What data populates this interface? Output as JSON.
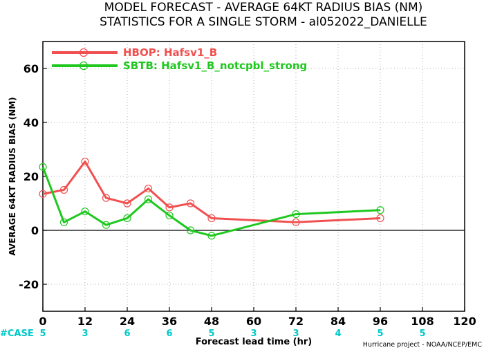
{
  "chart_data": {
    "type": "line",
    "title": [
      "MODEL FORECAST - AVERAGE 64KT RADIUS BIAS (NM)",
      "STATISTICS FOR A SINGLE STORM - al052022_DANIELLE"
    ],
    "xlabel": "Forecast lead time (hr)",
    "ylabel": "AVERAGE 64KT RADIUS BIAS (NM)",
    "xlim": [
      0,
      120
    ],
    "ylim": [
      -30,
      70
    ],
    "xticks": [
      0,
      12,
      24,
      36,
      48,
      60,
      72,
      84,
      96,
      108,
      120
    ],
    "yticks": [
      -20,
      0,
      20,
      40,
      60
    ],
    "grid": true,
    "legend_position": "top-left",
    "zero_line": true,
    "series": [
      {
        "name": "HBOP: Hafsv1_B",
        "color": "#f05050",
        "x": [
          0,
          6,
          12,
          18,
          24,
          30,
          36,
          42,
          48,
          72,
          96
        ],
        "y": [
          13.5,
          15,
          25.5,
          12,
          10,
          15.5,
          8.5,
          10,
          4.5,
          3,
          4.5
        ]
      },
      {
        "name": "SBTB: Hafsv1_B_notcpbl_strong",
        "color": "#1ec81e",
        "x": [
          0,
          6,
          12,
          18,
          24,
          30,
          36,
          42,
          48,
          72,
          96
        ],
        "y": [
          23.5,
          3,
          7,
          2,
          4.5,
          11.5,
          5.5,
          0,
          -2,
          6,
          7.5
        ]
      }
    ],
    "case_label": "#CASE",
    "cases": [
      {
        "x": 0,
        "n": "5"
      },
      {
        "x": 12,
        "n": "3"
      },
      {
        "x": 24,
        "n": "6"
      },
      {
        "x": 36,
        "n": "6"
      },
      {
        "x": 48,
        "n": "5"
      },
      {
        "x": 60,
        "n": "3"
      },
      {
        "x": 72,
        "n": "3"
      },
      {
        "x": 84,
        "n": "4"
      },
      {
        "x": 96,
        "n": "5"
      },
      {
        "x": 108,
        "n": "5"
      }
    ],
    "credit": "Hurricane project - NOAA/NCEP/EMC"
  }
}
